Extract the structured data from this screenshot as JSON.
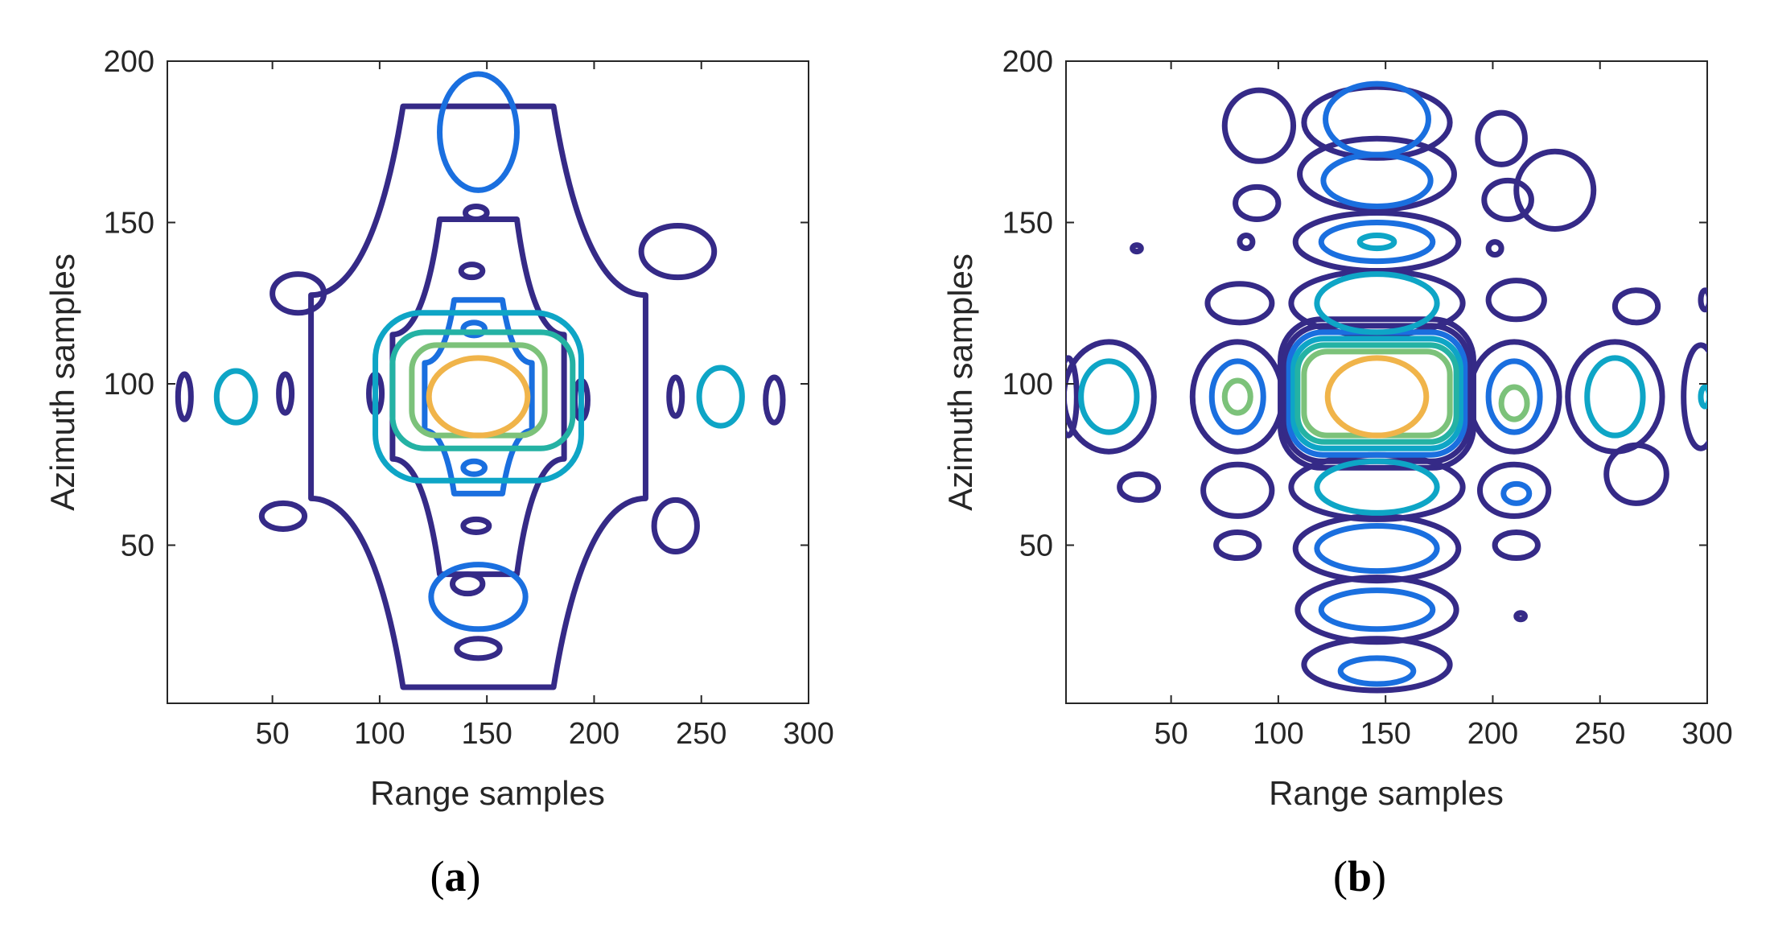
{
  "colors": {
    "level1": "#352a87",
    "level2": "#1a6fdf",
    "level3": "#0ea5c6",
    "level4": "#24b2a4",
    "level5": "#7cc27a",
    "level6": "#f0b44a"
  },
  "chart_data": [
    {
      "type": "contour",
      "panel_label": "a",
      "xlabel": "Range samples",
      "ylabel": "Azimuth samples",
      "xlim": [
        1,
        300
      ],
      "ylim": [
        1,
        200
      ],
      "xticks": [
        50,
        100,
        150,
        200,
        250,
        300
      ],
      "yticks": [
        50,
        100,
        150,
        200
      ],
      "grid": false,
      "peak": {
        "x": 146,
        "y": 96
      },
      "levels": [
        {
          "level": 1,
          "contours": [
            {
              "shape": "cross",
              "cx": 146,
              "cy": 96,
              "hw": 40,
              "hh": 55
            },
            {
              "shape": "cross",
              "cx": 146,
              "cy": 96,
              "hw": 78,
              "hh": 90
            },
            {
              "shape": "ellipse",
              "cx": 9,
              "cy": 96,
              "rx": 3,
              "ry": 7
            },
            {
              "shape": "ellipse",
              "cx": 56,
              "cy": 97,
              "rx": 3,
              "ry": 6
            },
            {
              "shape": "ellipse",
              "cx": 98,
              "cy": 97,
              "rx": 3,
              "ry": 6
            },
            {
              "shape": "ellipse",
              "cx": 194,
              "cy": 95,
              "rx": 3,
              "ry": 6
            },
            {
              "shape": "ellipse",
              "cx": 238,
              "cy": 96,
              "rx": 3,
              "ry": 6
            },
            {
              "shape": "ellipse",
              "cx": 284,
              "cy": 95,
              "rx": 4,
              "ry": 7
            },
            {
              "shape": "ellipse",
              "cx": 143,
              "cy": 135,
              "rx": 5,
              "ry": 2
            },
            {
              "shape": "ellipse",
              "cx": 145,
              "cy": 153,
              "rx": 5,
              "ry": 2
            },
            {
              "shape": "ellipse",
              "cx": 145,
              "cy": 56,
              "rx": 6,
              "ry": 2
            },
            {
              "shape": "ellipse",
              "cx": 141,
              "cy": 38,
              "rx": 7,
              "ry": 3
            },
            {
              "shape": "ellipse",
              "cx": 146,
              "cy": 18,
              "rx": 10,
              "ry": 3
            },
            {
              "shape": "ellipse",
              "cx": 55,
              "cy": 59,
              "rx": 10,
              "ry": 4
            },
            {
              "shape": "ellipse",
              "cx": 238,
              "cy": 56,
              "rx": 10,
              "ry": 8
            },
            {
              "shape": "ellipse",
              "cx": 239,
              "cy": 141,
              "rx": 17,
              "ry": 8
            },
            {
              "shape": "ellipse",
              "cx": 62,
              "cy": 128,
              "rx": 12,
              "ry": 6
            }
          ]
        },
        {
          "level": 2,
          "contours": [
            {
              "shape": "cross",
              "cx": 146,
              "cy": 96,
              "hw": 25,
              "hh": 30
            },
            {
              "shape": "ellipse",
              "cx": 146,
              "cy": 178,
              "rx": 18,
              "ry": 18
            },
            {
              "shape": "ellipse",
              "cx": 146,
              "cy": 34,
              "rx": 22,
              "ry": 10
            },
            {
              "shape": "ellipse",
              "cx": 144,
              "cy": 117,
              "rx": 5,
              "ry": 2
            },
            {
              "shape": "ellipse",
              "cx": 144,
              "cy": 74,
              "rx": 5,
              "ry": 2
            }
          ]
        },
        {
          "level": 3,
          "contours": [
            {
              "shape": "rect",
              "cx": 146,
              "cy": 96,
              "hw": 48,
              "hh": 26
            },
            {
              "shape": "ellipse",
              "cx": 33,
              "cy": 96,
              "rx": 9,
              "ry": 8
            },
            {
              "shape": "ellipse",
              "cx": 259,
              "cy": 96,
              "rx": 10,
              "ry": 9
            }
          ]
        },
        {
          "level": 4,
          "contours": [
            {
              "shape": "rect",
              "cx": 148,
              "cy": 98,
              "hw": 42,
              "hh": 18
            }
          ]
        },
        {
          "level": 5,
          "contours": [
            {
              "shape": "rect",
              "cx": 146,
              "cy": 98,
              "hw": 31,
              "hh": 14
            }
          ]
        }
      ]
    },
    {
      "type": "contour",
      "panel_label": "b",
      "xlabel": "Range samples",
      "ylabel": "Azimuth samples",
      "xlim": [
        1,
        300
      ],
      "ylim": [
        1,
        200
      ],
      "xticks": [
        50,
        100,
        150,
        200,
        250,
        300
      ],
      "yticks": [
        50,
        100,
        150,
        200
      ],
      "grid": false,
      "peak": {
        "x": 146,
        "y": 96
      },
      "levels": [
        {
          "level": 1,
          "contours": [
            {
              "shape": "rect",
              "cx": 146,
              "cy": 97,
              "hw": 45,
              "hh": 23
            },
            {
              "shape": "rect",
              "cx": 146,
              "cy": 97,
              "hw": 43,
              "hh": 21
            },
            {
              "shape": "ellipse",
              "cx": 146,
              "cy": 13,
              "rx": 34,
              "ry": 8
            },
            {
              "shape": "ellipse",
              "cx": 146,
              "cy": 30,
              "rx": 37,
              "ry": 10
            },
            {
              "shape": "ellipse",
              "cx": 146,
              "cy": 49,
              "rx": 38,
              "ry": 10
            },
            {
              "shape": "ellipse",
              "cx": 146,
              "cy": 68,
              "rx": 40,
              "ry": 10
            },
            {
              "shape": "ellipse",
              "cx": 146,
              "cy": 125,
              "rx": 40,
              "ry": 10
            },
            {
              "shape": "ellipse",
              "cx": 146,
              "cy": 144,
              "rx": 38,
              "ry": 9
            },
            {
              "shape": "ellipse",
              "cx": 146,
              "cy": 165,
              "rx": 36,
              "ry": 11
            },
            {
              "shape": "ellipse",
              "cx": 146,
              "cy": 181,
              "rx": 34,
              "ry": 11
            },
            {
              "shape": "ellipse",
              "cx": 21,
              "cy": 96,
              "rx": 21,
              "ry": 17
            },
            {
              "shape": "ellipse",
              "cx": 81,
              "cy": 96,
              "rx": 21,
              "ry": 17
            },
            {
              "shape": "ellipse",
              "cx": 210,
              "cy": 96,
              "rx": 21,
              "ry": 17
            },
            {
              "shape": "ellipse",
              "cx": 257,
              "cy": 96,
              "rx": 22,
              "ry": 17
            },
            {
              "shape": "ellipse",
              "cx": 297,
              "cy": 96,
              "rx": 8,
              "ry": 16
            },
            {
              "shape": "ellipse",
              "cx": 2,
              "cy": 96,
              "rx": 4,
              "ry": 12
            },
            {
              "shape": "ellipse",
              "cx": 91,
              "cy": 180,
              "rx": 16,
              "ry": 11
            },
            {
              "shape": "ellipse",
              "cx": 90,
              "cy": 156,
              "rx": 10,
              "ry": 5
            },
            {
              "shape": "ellipse",
              "cx": 207,
              "cy": 157,
              "rx": 11,
              "ry": 6
            },
            {
              "shape": "ellipse",
              "cx": 204,
              "cy": 176,
              "rx": 11,
              "ry": 8
            },
            {
              "shape": "ellipse",
              "cx": 229,
              "cy": 160,
              "rx": 18,
              "ry": 12
            },
            {
              "shape": "ellipse",
              "cx": 82,
              "cy": 125,
              "rx": 15,
              "ry": 6
            },
            {
              "shape": "ellipse",
              "cx": 211,
              "cy": 126,
              "rx": 13,
              "ry": 6
            },
            {
              "shape": "ellipse",
              "cx": 85,
              "cy": 144,
              "rx": 3,
              "ry": 2
            },
            {
              "shape": "ellipse",
              "cx": 201,
              "cy": 142,
              "rx": 3,
              "ry": 2
            },
            {
              "shape": "ellipse",
              "cx": 81,
              "cy": 67,
              "rx": 16,
              "ry": 8
            },
            {
              "shape": "ellipse",
              "cx": 210,
              "cy": 67,
              "rx": 16,
              "ry": 8
            },
            {
              "shape": "ellipse",
              "cx": 81,
              "cy": 50,
              "rx": 10,
              "ry": 4
            },
            {
              "shape": "ellipse",
              "cx": 211,
              "cy": 50,
              "rx": 10,
              "ry": 4
            },
            {
              "shape": "ellipse",
              "cx": 35,
              "cy": 68,
              "rx": 9,
              "ry": 4
            },
            {
              "shape": "ellipse",
              "cx": 267,
              "cy": 124,
              "rx": 10,
              "ry": 5
            },
            {
              "shape": "ellipse",
              "cx": 267,
              "cy": 72,
              "rx": 14,
              "ry": 9
            },
            {
              "shape": "ellipse",
              "cx": 34,
              "cy": 142,
              "rx": 2,
              "ry": 1
            },
            {
              "shape": "ellipse",
              "cx": 213,
              "cy": 28,
              "rx": 2,
              "ry": 1
            },
            {
              "shape": "ellipse",
              "cx": 299,
              "cy": 126,
              "rx": 2,
              "ry": 3
            }
          ]
        },
        {
          "level": 2,
          "contours": [
            {
              "shape": "rect",
              "cx": 146,
              "cy": 97,
              "hw": 41,
              "hh": 19
            },
            {
              "shape": "ellipse",
              "cx": 146,
              "cy": 11,
              "rx": 17,
              "ry": 4
            },
            {
              "shape": "ellipse",
              "cx": 146,
              "cy": 30,
              "rx": 26,
              "ry": 6
            },
            {
              "shape": "ellipse",
              "cx": 146,
              "cy": 49,
              "rx": 28,
              "ry": 7
            },
            {
              "shape": "ellipse",
              "cx": 146,
              "cy": 144,
              "rx": 26,
              "ry": 6
            },
            {
              "shape": "ellipse",
              "cx": 146,
              "cy": 163,
              "rx": 25,
              "ry": 8
            },
            {
              "shape": "ellipse",
              "cx": 146,
              "cy": 182,
              "rx": 24,
              "ry": 11
            },
            {
              "shape": "ellipse",
              "cx": 81,
              "cy": 96,
              "rx": 12,
              "ry": 11
            },
            {
              "shape": "ellipse",
              "cx": 210,
              "cy": 96,
              "rx": 12,
              "ry": 11
            },
            {
              "shape": "ellipse",
              "cx": 211,
              "cy": 66,
              "rx": 6,
              "ry": 3
            }
          ]
        },
        {
          "level": 3,
          "contours": [
            {
              "shape": "rect",
              "cx": 146,
              "cy": 97,
              "hw": 39,
              "hh": 17
            },
            {
              "shape": "ellipse",
              "cx": 146,
              "cy": 125,
              "rx": 28,
              "ry": 9
            },
            {
              "shape": "ellipse",
              "cx": 146,
              "cy": 68,
              "rx": 28,
              "ry": 8
            },
            {
              "shape": "ellipse",
              "cx": 21,
              "cy": 96,
              "rx": 13,
              "ry": 11
            },
            {
              "shape": "ellipse",
              "cx": 257,
              "cy": 96,
              "rx": 13,
              "ry": 12
            },
            {
              "shape": "ellipse",
              "cx": 146,
              "cy": 144,
              "rx": 8,
              "ry": 2
            },
            {
              "shape": "ellipse",
              "cx": 299,
              "cy": 96,
              "rx": 2,
              "ry": 3
            }
          ]
        },
        {
          "level": 4,
          "contours": [
            {
              "shape": "rect",
              "cx": 146,
              "cy": 97,
              "hw": 37,
              "hh": 15
            }
          ]
        },
        {
          "level": 5,
          "contours": [
            {
              "shape": "rect",
              "cx": 146,
              "cy": 97,
              "hw": 34,
              "hh": 13
            },
            {
              "shape": "ellipse",
              "cx": 81,
              "cy": 96,
              "rx": 6,
              "ry": 5
            },
            {
              "shape": "ellipse",
              "cx": 210,
              "cy": 94,
              "rx": 6,
              "ry": 5
            }
          ]
        }
      ]
    }
  ]
}
